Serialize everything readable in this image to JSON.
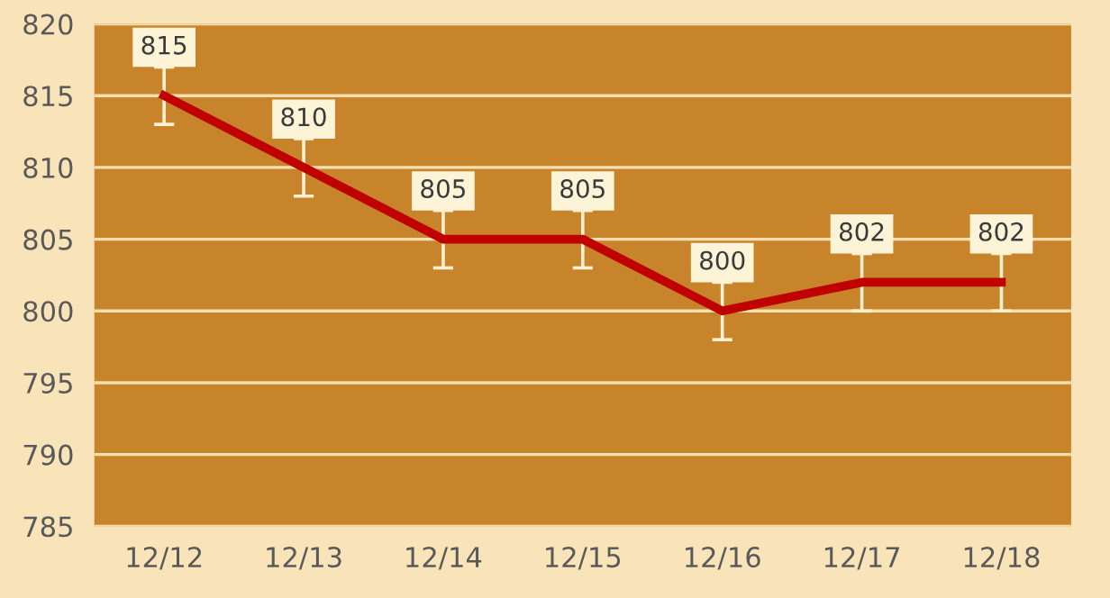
{
  "chart_data": {
    "type": "line",
    "categories": [
      "12/12",
      "12/13",
      "12/14",
      "12/15",
      "12/16",
      "12/17",
      "12/18"
    ],
    "series": [
      {
        "color": "#c00000",
        "values": [
          815,
          810,
          805,
          805,
          800,
          802,
          802
        ],
        "errors": [
          2,
          2,
          2,
          2,
          2,
          2,
          2
        ]
      }
    ],
    "ylim": [
      785,
      820
    ],
    "yticks": [
      785,
      790,
      795,
      800,
      805,
      810,
      815,
      820
    ],
    "grid": "y",
    "data_labels": true,
    "marker": "none",
    "line_style": "solid"
  }
}
